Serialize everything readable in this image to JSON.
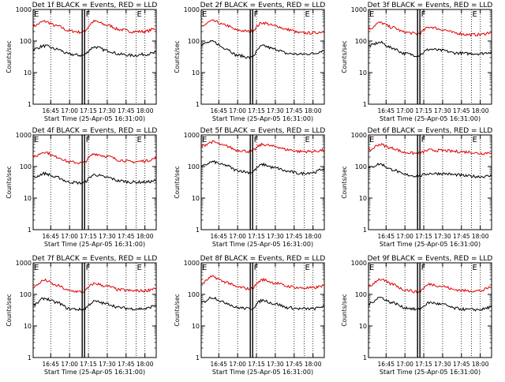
{
  "figure": {
    "ylabel": "Counts/sec",
    "xlabel": "Start Time (25-Apr-05 16:31:00)",
    "series_colors": {
      "events": "#000000",
      "lld": "#e00000"
    },
    "marker_labels": [
      "E",
      "F",
      "E"
    ]
  },
  "chart_data": [
    {
      "type": "line",
      "title": "Det 1f BLACK = Events, RED = LLD",
      "xlabel": "Start Time (25-Apr-05 16:31:00)",
      "ylabel": "Counts/sec",
      "yscale": "log",
      "ylim": [
        1,
        1000
      ],
      "xlim": [
        "16:31",
        "18:09"
      ],
      "x_ticks": [
        "16:45",
        "17:00",
        "17:15",
        "17:30",
        "17:45",
        "18:00"
      ],
      "y_ticks": [
        "1",
        "10",
        "100",
        "1000"
      ],
      "markers": [
        {
          "x": "16:31",
          "label": "E"
        },
        {
          "x": "17:11",
          "label": "F"
        },
        {
          "x": "17:53",
          "label": "E"
        }
      ],
      "x": [
        "16:31",
        "16:40",
        "16:50",
        "17:00",
        "17:10",
        "17:20",
        "17:30",
        "17:40",
        "17:50",
        "18:00",
        "18:09"
      ],
      "series": [
        {
          "name": "LLD",
          "color": "#e00000",
          "values": [
            300,
            420,
            300,
            210,
            190,
            420,
            320,
            230,
            200,
            200,
            250
          ]
        },
        {
          "name": "Events",
          "color": "#000000",
          "values": [
            55,
            70,
            55,
            38,
            35,
            65,
            50,
            38,
            35,
            38,
            42
          ]
        }
      ]
    },
    {
      "type": "line",
      "title": "Det 2f BLACK = Events, RED = LLD",
      "xlabel": "Start Time (25-Apr-05 16:31:00)",
      "ylabel": "Counts/sec",
      "yscale": "log",
      "ylim": [
        1,
        1000
      ],
      "xlim": [
        "16:31",
        "18:09"
      ],
      "x_ticks": [
        "16:45",
        "17:00",
        "17:15",
        "17:30",
        "17:45",
        "18:00"
      ],
      "y_ticks": [
        "1",
        "10",
        "100",
        "1000"
      ],
      "markers": [
        {
          "x": "16:31",
          "label": "E"
        },
        {
          "x": "17:11",
          "label": "F"
        },
        {
          "x": "17:53",
          "label": "E"
        }
      ],
      "x": [
        "16:31",
        "16:40",
        "16:50",
        "17:00",
        "17:10",
        "17:20",
        "17:30",
        "17:40",
        "17:50",
        "18:00",
        "18:09"
      ],
      "series": [
        {
          "name": "LLD",
          "color": "#e00000",
          "values": [
            300,
            430,
            320,
            220,
            200,
            380,
            300,
            230,
            180,
            180,
            200
          ]
        },
        {
          "name": "Events",
          "color": "#000000",
          "values": [
            80,
            95,
            60,
            35,
            30,
            70,
            55,
            40,
            38,
            40,
            50
          ]
        }
      ]
    },
    {
      "type": "line",
      "title": "Det 3f BLACK = Events, RED = LLD",
      "xlabel": "Start Time (25-Apr-05 16:31:00)",
      "ylabel": "Counts/sec",
      "yscale": "log",
      "ylim": [
        1,
        1000
      ],
      "xlim": [
        "16:31",
        "18:09"
      ],
      "x_ticks": [
        "16:45",
        "17:00",
        "17:15",
        "17:30",
        "17:45",
        "18:00"
      ],
      "y_ticks": [
        "1",
        "10",
        "100",
        "1000"
      ],
      "markers": [
        {
          "x": "16:31",
          "label": "E"
        },
        {
          "x": "17:11",
          "label": "F"
        },
        {
          "x": "17:53",
          "label": "E"
        }
      ],
      "x": [
        "16:31",
        "16:40",
        "16:50",
        "17:00",
        "17:10",
        "17:20",
        "17:30",
        "17:40",
        "17:50",
        "18:00",
        "18:09"
      ],
      "series": [
        {
          "name": "LLD",
          "color": "#e00000",
          "values": [
            240,
            380,
            270,
            190,
            170,
            280,
            230,
            180,
            160,
            160,
            190
          ]
        },
        {
          "name": "Events",
          "color": "#000000",
          "values": [
            70,
            90,
            60,
            40,
            35,
            55,
            50,
            42,
            40,
            40,
            45
          ]
        }
      ]
    },
    {
      "type": "line",
      "title": "Det 4f BLACK = Events, RED = LLD",
      "xlabel": "Start Time (25-Apr-05 16:31:00)",
      "ylabel": "Counts/sec",
      "yscale": "log",
      "ylim": [
        1,
        1000
      ],
      "xlim": [
        "16:31",
        "18:09"
      ],
      "x_ticks": [
        "16:45",
        "17:00",
        "17:15",
        "17:30",
        "17:45",
        "18:00"
      ],
      "y_ticks": [
        "1",
        "10",
        "100",
        "1000"
      ],
      "markers": [
        {
          "x": "16:31",
          "label": "E"
        },
        {
          "x": "17:11",
          "label": "F"
        },
        {
          "x": "17:53",
          "label": "E"
        }
      ],
      "x": [
        "16:31",
        "16:40",
        "16:50",
        "17:00",
        "17:10",
        "17:20",
        "17:30",
        "17:40",
        "17:50",
        "18:00",
        "18:09"
      ],
      "series": [
        {
          "name": "LLD",
          "color": "#e00000",
          "values": [
            200,
            290,
            200,
            140,
            130,
            250,
            210,
            160,
            140,
            150,
            180
          ]
        },
        {
          "name": "Events",
          "color": "#000000",
          "values": [
            45,
            60,
            45,
            32,
            30,
            55,
            45,
            35,
            32,
            32,
            35
          ]
        }
      ]
    },
    {
      "type": "line",
      "title": "Det 5f BLACK = Events, RED = LLD",
      "xlabel": "Start Time (25-Apr-05 16:31:00)",
      "ylabel": "Counts/sec",
      "yscale": "log",
      "ylim": [
        1,
        1000
      ],
      "xlim": [
        "16:31",
        "18:09"
      ],
      "x_ticks": [
        "16:45",
        "17:00",
        "17:15",
        "17:30",
        "17:45",
        "18:00"
      ],
      "y_ticks": [
        "1",
        "10",
        "100",
        "1000"
      ],
      "markers": [
        {
          "x": "16:31",
          "label": "E"
        },
        {
          "x": "17:11",
          "label": "F"
        },
        {
          "x": "17:53",
          "label": "E"
        }
      ],
      "x": [
        "16:31",
        "16:40",
        "16:50",
        "17:00",
        "17:10",
        "17:20",
        "17:30",
        "17:40",
        "17:50",
        "18:00",
        "18:09"
      ],
      "series": [
        {
          "name": "LLD",
          "color": "#e00000",
          "values": [
            450,
            600,
            450,
            330,
            300,
            500,
            430,
            340,
            300,
            300,
            330
          ]
        },
        {
          "name": "Events",
          "color": "#000000",
          "values": [
            100,
            140,
            110,
            75,
            65,
            115,
            90,
            70,
            60,
            65,
            85
          ]
        }
      ]
    },
    {
      "type": "line",
      "title": "Det 6f BLACK = Events, RED = LLD",
      "xlabel": "Start Time (25-Apr-05 16:31:00)",
      "ylabel": "Counts/sec",
      "yscale": "log",
      "ylim": [
        1,
        1000
      ],
      "xlim": [
        "16:31",
        "18:09"
      ],
      "x_ticks": [
        "16:45",
        "17:00",
        "17:15",
        "17:30",
        "17:45",
        "18:00"
      ],
      "y_ticks": [
        "1",
        "10",
        "100",
        "1000"
      ],
      "markers": [
        {
          "x": "16:31",
          "label": "E"
        },
        {
          "x": "17:11",
          "label": "F"
        },
        {
          "x": "17:53",
          "label": "E"
        }
      ],
      "x": [
        "16:31",
        "16:40",
        "16:50",
        "17:00",
        "17:10",
        "17:20",
        "17:30",
        "17:40",
        "17:50",
        "18:00",
        "18:09"
      ],
      "series": [
        {
          "name": "LLD",
          "color": "#e00000",
          "values": [
            320,
            500,
            380,
            280,
            260,
            330,
            320,
            300,
            290,
            260,
            280
          ]
        },
        {
          "name": "Events",
          "color": "#000000",
          "values": [
            90,
            120,
            80,
            55,
            50,
            60,
            60,
            55,
            50,
            48,
            50
          ]
        }
      ]
    },
    {
      "type": "line",
      "title": "Det 7f BLACK = Events, RED = LLD",
      "xlabel": "Start Time (25-Apr-05 16:31:00)",
      "ylabel": "Counts/sec",
      "yscale": "log",
      "ylim": [
        1,
        1000
      ],
      "xlim": [
        "16:31",
        "18:09"
      ],
      "x_ticks": [
        "16:45",
        "17:00",
        "17:15",
        "17:30",
        "17:45",
        "18:00"
      ],
      "y_ticks": [
        "1",
        "10",
        "100",
        "1000"
      ],
      "markers": [
        {
          "x": "16:31",
          "label": "E"
        },
        {
          "x": "17:11",
          "label": "F"
        },
        {
          "x": "17:53",
          "label": "E"
        }
      ],
      "x": [
        "16:31",
        "16:40",
        "16:50",
        "17:00",
        "17:10",
        "17:20",
        "17:30",
        "17:40",
        "17:50",
        "18:00",
        "18:09"
      ],
      "series": [
        {
          "name": "LLD",
          "color": "#e00000",
          "values": [
            170,
            280,
            190,
            130,
            120,
            220,
            180,
            140,
            130,
            130,
            160
          ]
        },
        {
          "name": "Events",
          "color": "#000000",
          "values": [
            45,
            75,
            55,
            35,
            33,
            60,
            50,
            38,
            35,
            35,
            45
          ]
        }
      ]
    },
    {
      "type": "line",
      "title": "Det 8f BLACK = Events, RED = LLD",
      "xlabel": "Start Time (25-Apr-05 16:31:00)",
      "ylabel": "Counts/sec",
      "yscale": "log",
      "ylim": [
        1,
        1000
      ],
      "xlim": [
        "16:31",
        "18:09"
      ],
      "x_ticks": [
        "16:45",
        "17:00",
        "17:15",
        "17:30",
        "17:45",
        "18:00"
      ],
      "y_ticks": [
        "1",
        "10",
        "100",
        "1000"
      ],
      "markers": [
        {
          "x": "16:31",
          "label": "E"
        },
        {
          "x": "17:11",
          "label": "F"
        },
        {
          "x": "17:53",
          "label": "E"
        }
      ],
      "x": [
        "16:31",
        "16:40",
        "16:50",
        "17:00",
        "17:10",
        "17:20",
        "17:30",
        "17:40",
        "17:50",
        "18:00",
        "18:09"
      ],
      "series": [
        {
          "name": "LLD",
          "color": "#e00000",
          "values": [
            220,
            360,
            250,
            170,
            150,
            290,
            230,
            180,
            160,
            160,
            190
          ]
        },
        {
          "name": "Events",
          "color": "#000000",
          "values": [
            55,
            80,
            55,
            38,
            35,
            65,
            50,
            38,
            35,
            35,
            42
          ]
        }
      ]
    },
    {
      "type": "line",
      "title": "Det 9f BLACK = Events, RED = LLD",
      "xlabel": "Start Time (25-Apr-05 16:31:00)",
      "ylabel": "Counts/sec",
      "yscale": "log",
      "ylim": [
        1,
        1000
      ],
      "xlim": [
        "16:31",
        "18:09"
      ],
      "x_ticks": [
        "16:45",
        "17:00",
        "17:15",
        "17:30",
        "17:45",
        "18:00"
      ],
      "y_ticks": [
        "1",
        "10",
        "100",
        "1000"
      ],
      "markers": [
        {
          "x": "16:31",
          "label": "E"
        },
        {
          "x": "17:11",
          "label": "F"
        },
        {
          "x": "17:53",
          "label": "E"
        }
      ],
      "x": [
        "16:31",
        "16:40",
        "16:50",
        "17:00",
        "17:10",
        "17:20",
        "17:30",
        "17:40",
        "17:50",
        "18:00",
        "18:09"
      ],
      "series": [
        {
          "name": "LLD",
          "color": "#e00000",
          "values": [
            180,
            300,
            210,
            140,
            120,
            210,
            180,
            140,
            130,
            130,
            170
          ]
        },
        {
          "name": "Events",
          "color": "#000000",
          "values": [
            50,
            80,
            55,
            38,
            33,
            55,
            48,
            36,
            33,
            33,
            40
          ]
        }
      ]
    }
  ]
}
